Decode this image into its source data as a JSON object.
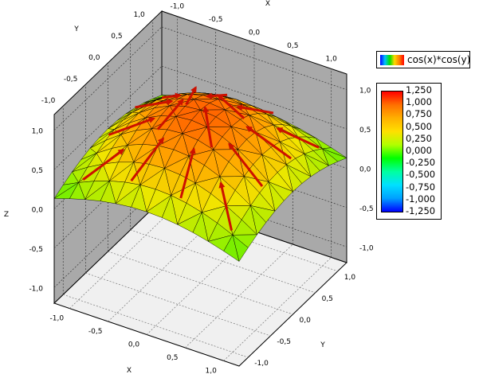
{
  "chart_data": {
    "type": "surface3d",
    "function_label": "cos(x)*cos(y)",
    "xlabel": "X",
    "ylabel": "Y",
    "zlabel": "Z",
    "x_range": [
      -1.2,
      1.2
    ],
    "y_range": [
      -1.2,
      1.2
    ],
    "z_range": [
      -1.2,
      1.2
    ],
    "grid": true,
    "legend_position": "right",
    "x_ticks": [
      "-1,0",
      "-0,5",
      "0,0",
      "0,5",
      "1,0"
    ],
    "y_ticks": [
      "-1,0",
      "-0,5",
      "0,0",
      "0,5",
      "1,0"
    ],
    "z_ticks": [
      "-1,0",
      "-0,5",
      "0,0",
      "0,5",
      "1,0"
    ],
    "colorbar": {
      "min": -1.25,
      "max": 1.25,
      "labels": [
        "1,250",
        "1,000",
        "0,750",
        "0,500",
        "0,250",
        "0,000",
        "-0,250",
        "-0,500",
        "-0,750",
        "-1,000",
        "-1,250"
      ]
    },
    "surface": {
      "expression": "cos(x)*cos(y)",
      "x": [
        -1.2,
        -1.0,
        -0.8,
        -0.6,
        -0.4,
        -0.2,
        0.0,
        0.2,
        0.4,
        0.6,
        0.8,
        1.0,
        1.2
      ],
      "y": [
        -1.2,
        -1.0,
        -0.8,
        -0.6,
        -0.4,
        -0.2,
        0.0,
        0.2,
        0.4,
        0.6,
        0.8,
        1.0,
        1.2
      ]
    },
    "vectors": [
      {
        "x": -0.9,
        "y": -0.9,
        "z": 0.38
      },
      {
        "x": -0.3,
        "y": -0.9,
        "z": 0.59
      },
      {
        "x": 0.3,
        "y": -0.9,
        "z": 0.59
      },
      {
        "x": 0.9,
        "y": -0.9,
        "z": 0.38
      },
      {
        "x": -0.9,
        "y": -0.3,
        "z": 0.59
      },
      {
        "x": -0.3,
        "y": -0.3,
        "z": 0.91
      },
      {
        "x": 0.3,
        "y": -0.3,
        "z": 0.91
      },
      {
        "x": 0.9,
        "y": -0.3,
        "z": 0.59
      },
      {
        "x": -0.9,
        "y": 0.3,
        "z": 0.59
      },
      {
        "x": -0.3,
        "y": 0.3,
        "z": 0.91
      },
      {
        "x": 0.3,
        "y": 0.3,
        "z": 0.91
      },
      {
        "x": 0.9,
        "y": 0.3,
        "z": 0.59
      },
      {
        "x": -0.9,
        "y": 0.9,
        "z": 0.38
      },
      {
        "x": -0.3,
        "y": 0.9,
        "z": 0.59
      },
      {
        "x": 0.3,
        "y": 0.9,
        "z": 0.59
      },
      {
        "x": 0.9,
        "y": 0.9,
        "z": 0.38
      }
    ],
    "colors": {
      "vector": "#cc1100",
      "mesh": "#000000",
      "wall": "#a9a9a9",
      "floor": "#f0f0f0"
    }
  }
}
